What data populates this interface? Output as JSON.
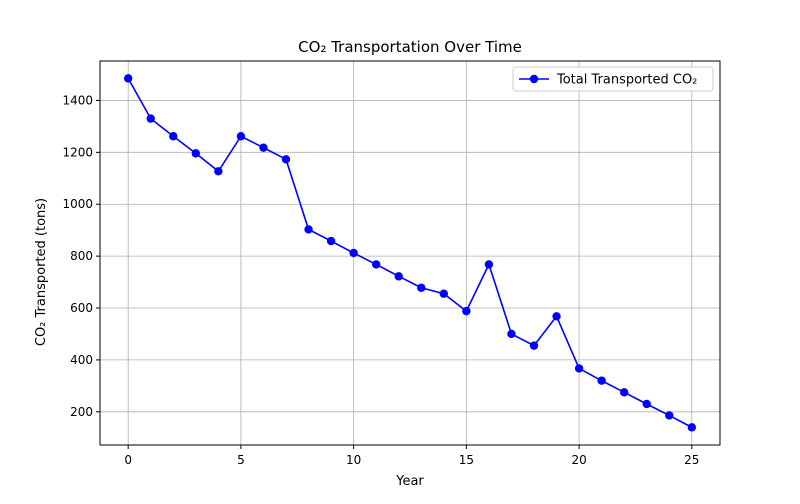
{
  "chart_data": {
    "type": "line",
    "title": "CO₂ Transportation Over Time",
    "xlabel": "Year",
    "ylabel": "CO₂ Transported (tons)",
    "xlim": [
      -1.25,
      26.25
    ],
    "ylim": [
      72,
      1552
    ],
    "xticks": [
      0,
      5,
      10,
      15,
      20,
      25
    ],
    "yticks": [
      200,
      400,
      600,
      800,
      1000,
      1200,
      1400
    ],
    "grid": true,
    "legend_position": "top-right",
    "series": [
      {
        "name": "Total Transported CO₂",
        "color": "#0000ff",
        "marker": "circle",
        "x": [
          0,
          1,
          2,
          3,
          4,
          5,
          6,
          7,
          8,
          9,
          10,
          11,
          12,
          13,
          14,
          15,
          16,
          17,
          18,
          19,
          20,
          21,
          22,
          23,
          24,
          25
        ],
        "y": [
          1485,
          1330,
          1262,
          1196,
          1127,
          1262,
          1218,
          1173,
          903,
          858,
          812,
          768,
          722,
          678,
          655,
          588,
          768,
          500,
          455,
          568,
          367,
          320,
          275,
          230,
          186,
          140
        ]
      }
    ]
  }
}
